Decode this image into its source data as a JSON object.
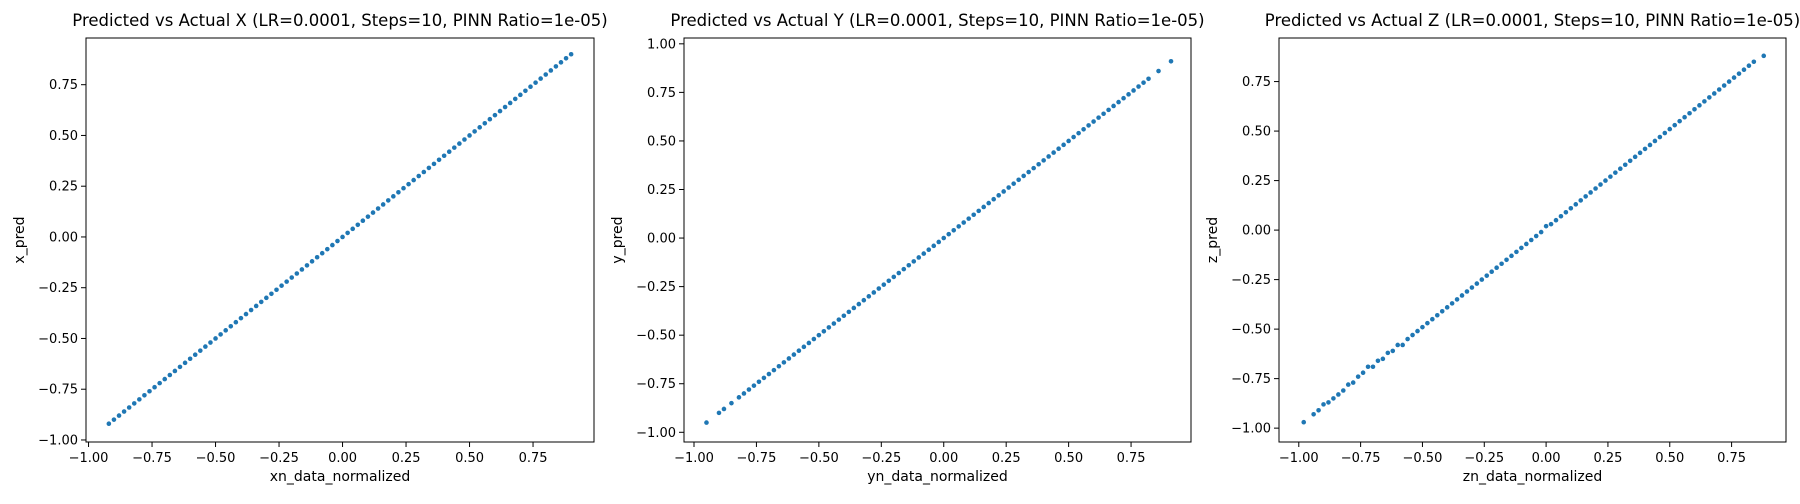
{
  "figure": {
    "background": "#ffffff",
    "point_color": "#1f77b4"
  },
  "chart_data": [
    {
      "type": "scatter",
      "title": "Predicted vs Actual X (LR=0.0001, Steps=10, PINN Ratio=1e-05)",
      "xlabel": "xn_data_normalized",
      "ylabel": "x_pred",
      "xlim": [
        -1.01,
        0.99
      ],
      "ylim": [
        -1.01,
        0.98
      ],
      "xticks": [
        -1.0,
        -0.75,
        -0.5,
        -0.25,
        0.0,
        0.25,
        0.5,
        0.75
      ],
      "xtick_labels": [
        "−1.00",
        "−0.75",
        "−0.50",
        "−0.25",
        "0.00",
        "0.25",
        "0.50",
        "0.75"
      ],
      "yticks": [
        -1.0,
        -0.75,
        -0.5,
        -0.25,
        0.0,
        0.25,
        0.5,
        0.75
      ],
      "ytick_labels": [
        "−1.00",
        "−0.75",
        "−0.50",
        "−0.25",
        "0.00",
        "0.25",
        "0.50",
        "0.75"
      ],
      "grid": false,
      "series": [
        {
          "x": [
            -0.92,
            -0.9,
            -0.88,
            -0.86,
            -0.84,
            -0.82,
            -0.8,
            -0.78,
            -0.76,
            -0.74,
            -0.72,
            -0.7,
            -0.68,
            -0.66,
            -0.64,
            -0.62,
            -0.6,
            -0.58,
            -0.56,
            -0.54,
            -0.52,
            -0.5,
            -0.48,
            -0.46,
            -0.44,
            -0.42,
            -0.4,
            -0.38,
            -0.36,
            -0.34,
            -0.32,
            -0.3,
            -0.28,
            -0.26,
            -0.24,
            -0.22,
            -0.2,
            -0.18,
            -0.16,
            -0.14,
            -0.12,
            -0.1,
            -0.08,
            -0.06,
            -0.04,
            -0.02,
            0.0,
            0.02,
            0.04,
            0.06,
            0.08,
            0.1,
            0.12,
            0.14,
            0.16,
            0.18,
            0.2,
            0.22,
            0.24,
            0.26,
            0.28,
            0.3,
            0.32,
            0.34,
            0.36,
            0.38,
            0.4,
            0.42,
            0.44,
            0.46,
            0.48,
            0.5,
            0.52,
            0.54,
            0.56,
            0.58,
            0.6,
            0.62,
            0.64,
            0.66,
            0.68,
            0.7,
            0.72,
            0.74,
            0.76,
            0.78,
            0.8,
            0.82,
            0.84,
            0.86,
            0.88,
            0.9
          ],
          "y": [
            -0.92,
            -0.9,
            -0.88,
            -0.86,
            -0.84,
            -0.82,
            -0.8,
            -0.78,
            -0.76,
            -0.74,
            -0.72,
            -0.7,
            -0.68,
            -0.66,
            -0.64,
            -0.62,
            -0.6,
            -0.58,
            -0.56,
            -0.54,
            -0.52,
            -0.5,
            -0.48,
            -0.46,
            -0.44,
            -0.42,
            -0.4,
            -0.38,
            -0.36,
            -0.34,
            -0.32,
            -0.3,
            -0.28,
            -0.26,
            -0.24,
            -0.22,
            -0.2,
            -0.18,
            -0.16,
            -0.14,
            -0.12,
            -0.1,
            -0.08,
            -0.06,
            -0.04,
            -0.02,
            0.0,
            0.02,
            0.04,
            0.06,
            0.08,
            0.1,
            0.12,
            0.14,
            0.16,
            0.18,
            0.2,
            0.22,
            0.24,
            0.26,
            0.28,
            0.3,
            0.32,
            0.34,
            0.36,
            0.38,
            0.4,
            0.42,
            0.44,
            0.46,
            0.48,
            0.5,
            0.52,
            0.54,
            0.56,
            0.58,
            0.6,
            0.62,
            0.64,
            0.66,
            0.68,
            0.7,
            0.72,
            0.74,
            0.76,
            0.78,
            0.8,
            0.82,
            0.84,
            0.86,
            0.88,
            0.9
          ]
        }
      ]
    },
    {
      "type": "scatter",
      "title": "Predicted vs Actual Y (LR=0.0001, Steps=10, PINN Ratio=1e-05)",
      "xlabel": "yn_data_normalized",
      "ylabel": "y_pred",
      "xlim": [
        -1.04,
        0.99
      ],
      "ylim": [
        -1.05,
        1.03
      ],
      "xticks": [
        -1.0,
        -0.75,
        -0.5,
        -0.25,
        0.0,
        0.25,
        0.5,
        0.75
      ],
      "xtick_labels": [
        "−1.00",
        "−0.75",
        "−0.50",
        "−0.25",
        "0.00",
        "0.25",
        "0.50",
        "0.75"
      ],
      "yticks": [
        -1.0,
        -0.75,
        -0.5,
        -0.25,
        0.0,
        0.25,
        0.5,
        0.75,
        1.0
      ],
      "ytick_labels": [
        "−1.00",
        "−0.75",
        "−0.50",
        "−0.25",
        "0.00",
        "0.25",
        "0.50",
        "0.75",
        "1.00"
      ],
      "grid": false,
      "series": [
        {
          "x": [
            -0.95,
            -0.9,
            -0.88,
            -0.85,
            -0.82,
            -0.8,
            -0.78,
            -0.76,
            -0.74,
            -0.72,
            -0.7,
            -0.68,
            -0.66,
            -0.64,
            -0.62,
            -0.6,
            -0.58,
            -0.56,
            -0.54,
            -0.52,
            -0.5,
            -0.48,
            -0.46,
            -0.44,
            -0.42,
            -0.4,
            -0.38,
            -0.36,
            -0.34,
            -0.32,
            -0.3,
            -0.28,
            -0.26,
            -0.24,
            -0.22,
            -0.2,
            -0.18,
            -0.16,
            -0.14,
            -0.12,
            -0.1,
            -0.08,
            -0.06,
            -0.04,
            -0.02,
            0.0,
            0.02,
            0.04,
            0.06,
            0.08,
            0.1,
            0.12,
            0.14,
            0.16,
            0.18,
            0.2,
            0.22,
            0.24,
            0.26,
            0.28,
            0.3,
            0.32,
            0.34,
            0.36,
            0.38,
            0.4,
            0.42,
            0.44,
            0.46,
            0.48,
            0.5,
            0.52,
            0.54,
            0.56,
            0.58,
            0.6,
            0.62,
            0.64,
            0.66,
            0.68,
            0.7,
            0.72,
            0.74,
            0.76,
            0.78,
            0.8,
            0.82,
            0.86,
            0.91
          ],
          "y": [
            -0.95,
            -0.9,
            -0.88,
            -0.85,
            -0.82,
            -0.8,
            -0.78,
            -0.76,
            -0.74,
            -0.72,
            -0.7,
            -0.68,
            -0.66,
            -0.64,
            -0.62,
            -0.6,
            -0.58,
            -0.56,
            -0.54,
            -0.52,
            -0.5,
            -0.48,
            -0.46,
            -0.44,
            -0.42,
            -0.4,
            -0.38,
            -0.36,
            -0.34,
            -0.32,
            -0.3,
            -0.28,
            -0.26,
            -0.24,
            -0.22,
            -0.2,
            -0.18,
            -0.16,
            -0.14,
            -0.12,
            -0.1,
            -0.08,
            -0.06,
            -0.04,
            -0.02,
            0.0,
            0.02,
            0.04,
            0.06,
            0.08,
            0.1,
            0.12,
            0.14,
            0.16,
            0.18,
            0.2,
            0.22,
            0.24,
            0.26,
            0.28,
            0.3,
            0.32,
            0.34,
            0.36,
            0.38,
            0.4,
            0.42,
            0.44,
            0.46,
            0.48,
            0.5,
            0.52,
            0.54,
            0.56,
            0.58,
            0.6,
            0.62,
            0.64,
            0.66,
            0.68,
            0.7,
            0.72,
            0.74,
            0.76,
            0.78,
            0.8,
            0.82,
            0.86,
            0.91
          ]
        }
      ]
    },
    {
      "type": "scatter",
      "title": "Predicted vs Actual Z (LR=0.0001, Steps=10, PINN Ratio=1e-05)",
      "xlabel": "zn_data_normalized",
      "ylabel": "z_pred",
      "xlim": [
        -1.08,
        0.97
      ],
      "ylim": [
        -1.07,
        0.97
      ],
      "xticks": [
        -1.0,
        -0.75,
        -0.5,
        -0.25,
        0.0,
        0.25,
        0.5,
        0.75
      ],
      "xtick_labels": [
        "−1.00",
        "−0.75",
        "−0.50",
        "−0.25",
        "0.00",
        "0.25",
        "0.50",
        "0.75"
      ],
      "yticks": [
        -1.0,
        -0.75,
        -0.5,
        -0.25,
        0.0,
        0.25,
        0.5,
        0.75
      ],
      "ytick_labels": [
        "−1.00",
        "−0.75",
        "−0.50",
        "−0.25",
        "0.00",
        "0.25",
        "0.50",
        "0.75"
      ],
      "grid": false,
      "series": [
        {
          "x": [
            -0.98,
            -0.94,
            -0.92,
            -0.9,
            -0.88,
            -0.86,
            -0.84,
            -0.82,
            -0.8,
            -0.78,
            -0.76,
            -0.74,
            -0.72,
            -0.7,
            -0.68,
            -0.66,
            -0.64,
            -0.62,
            -0.6,
            -0.58,
            -0.56,
            -0.54,
            -0.52,
            -0.5,
            -0.48,
            -0.46,
            -0.44,
            -0.42,
            -0.4,
            -0.38,
            -0.36,
            -0.34,
            -0.32,
            -0.3,
            -0.28,
            -0.26,
            -0.24,
            -0.22,
            -0.2,
            -0.18,
            -0.16,
            -0.14,
            -0.12,
            -0.1,
            -0.08,
            -0.06,
            -0.04,
            -0.02,
            0.0,
            0.02,
            0.04,
            0.06,
            0.08,
            0.1,
            0.12,
            0.14,
            0.16,
            0.18,
            0.2,
            0.22,
            0.24,
            0.26,
            0.28,
            0.3,
            0.32,
            0.34,
            0.36,
            0.38,
            0.4,
            0.42,
            0.44,
            0.46,
            0.48,
            0.5,
            0.52,
            0.54,
            0.56,
            0.58,
            0.6,
            0.62,
            0.64,
            0.66,
            0.68,
            0.7,
            0.72,
            0.74,
            0.76,
            0.78,
            0.8,
            0.82,
            0.84,
            0.88
          ],
          "y": [
            -0.97,
            -0.93,
            -0.91,
            -0.88,
            -0.87,
            -0.85,
            -0.83,
            -0.81,
            -0.78,
            -0.77,
            -0.74,
            -0.72,
            -0.69,
            -0.69,
            -0.66,
            -0.65,
            -0.62,
            -0.61,
            -0.58,
            -0.58,
            -0.55,
            -0.53,
            -0.51,
            -0.49,
            -0.47,
            -0.45,
            -0.43,
            -0.41,
            -0.39,
            -0.37,
            -0.35,
            -0.33,
            -0.31,
            -0.29,
            -0.27,
            -0.25,
            -0.23,
            -0.21,
            -0.19,
            -0.17,
            -0.15,
            -0.13,
            -0.11,
            -0.09,
            -0.07,
            -0.05,
            -0.03,
            -0.01,
            0.02,
            0.03,
            0.05,
            0.07,
            0.09,
            0.11,
            0.13,
            0.15,
            0.17,
            0.19,
            0.21,
            0.23,
            0.25,
            0.27,
            0.29,
            0.31,
            0.33,
            0.35,
            0.37,
            0.39,
            0.41,
            0.43,
            0.45,
            0.47,
            0.49,
            0.51,
            0.53,
            0.55,
            0.57,
            0.59,
            0.61,
            0.63,
            0.65,
            0.67,
            0.69,
            0.71,
            0.73,
            0.75,
            0.77,
            0.79,
            0.81,
            0.83,
            0.85,
            0.88
          ]
        }
      ]
    }
  ]
}
